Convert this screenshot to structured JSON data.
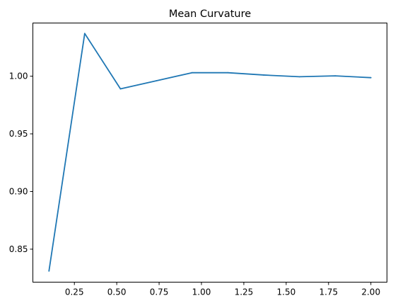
{
  "chart_data": {
    "type": "line",
    "title": "Mean Curvature",
    "xlabel": "",
    "ylabel": "",
    "xlim": [
      0.005,
      2.095
    ],
    "ylim": [
      0.8214,
      1.0461
    ],
    "grid": false,
    "x_ticks": [
      {
        "value": 0.25,
        "label": "0.25"
      },
      {
        "value": 0.5,
        "label": "0.50"
      },
      {
        "value": 0.75,
        "label": "0.75"
      },
      {
        "value": 1.0,
        "label": "1.00"
      },
      {
        "value": 1.25,
        "label": "1.25"
      },
      {
        "value": 1.5,
        "label": "1.50"
      },
      {
        "value": 1.75,
        "label": "1.75"
      },
      {
        "value": 2.0,
        "label": "2.00"
      }
    ],
    "y_ticks": [
      {
        "value": 0.85,
        "label": "0.85"
      },
      {
        "value": 0.9,
        "label": "0.90"
      },
      {
        "value": 0.95,
        "label": "0.95"
      },
      {
        "value": 1.0,
        "label": "1.00"
      }
    ],
    "series": [
      {
        "color": "#1f77b4",
        "x": [
          0.1,
          0.311,
          0.522,
          0.733,
          0.944,
          1.156,
          1.367,
          1.578,
          1.789,
          2.0
        ],
        "values": [
          0.831,
          1.037,
          0.989,
          0.996,
          1.003,
          1.003,
          1.001,
          0.9995,
          1.0003,
          0.9987
        ]
      }
    ]
  }
}
